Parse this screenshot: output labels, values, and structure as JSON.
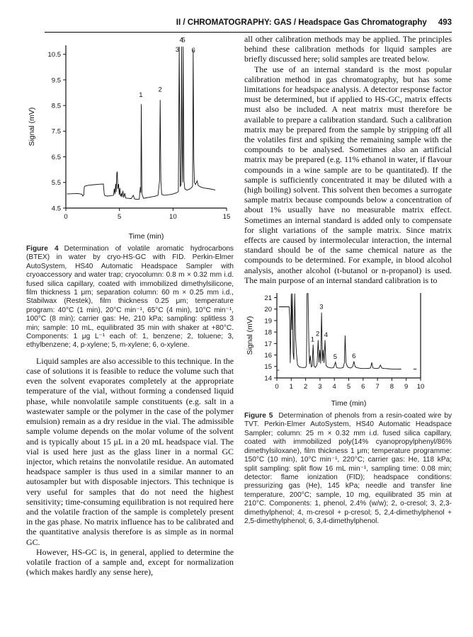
{
  "header": {
    "title": "II / CHROMATOGRAPHY: GAS / Headspace Gas Chromatography",
    "page_number": "493"
  },
  "left_column": {
    "figure4": {
      "label": "Figure 4",
      "text": "Determination of volatile aromatic hydrocarbons (BTEX) in water by cryo-HS-GC with FID. Perkin-Elmer AutoSystem, HS40 Automatic Headspace Sampler with cryoaccessory and water trap; cryocolumn: 0.8 m × 0.32 mm i.d. fused silica capillary, coated with immobilized dimethylsilicone, film thickness 1 μm; separation column: 60 m × 0.25 mm i.d., Stabilwax (Restek), film thickness 0.25 μm; temperature program: 40°C (1 min), 20°C min⁻¹, 65°C (4 min), 10°C min⁻¹, 100°C (8 min); carrier gas: He, 210 kPa; sampling: splitless 3 min; sample: 10 mL, equilibrated 35 min with shaker at +80°C. Components: 1 μg L⁻¹ each of: 1, benzene; 2, toluene; 3, ethylbenzene; 4, p-xylene; 5, m-xylene; 6, o-xylene."
    },
    "paragraphs": [
      "Liquid samples are also accessible to this technique. In the case of solutions it is feasible to reduce the volume such that even the solvent evaporates completely at the appropriate temperature of the vial, without forming a condensed liquid phase, while nonvolatile sample constituents (e.g. salt in a wastewater sample or the polymer in the case of the polymer emulsion) remain as a dry residue in the vial. The admissible sample volume depends on the molar volume of the solvent and is typically about 15 μL in a 20 mL headspace vial. The vial is used here just as the glass liner in a normal GC injector, which retains the nonvolatile residue. An automated headspace sampler is thus used in a similar manner to an autosampler but with disposable injectors. This technique is very useful for samples that do not need the highest sensitivity; time-consuming equilibration is not required here and the volatile fraction of the sample is completely present in the gas phase. No matrix influence has to be calibrated and the quantitative analysis therefore is as simple as in normal GC.",
      "However, HS-GC is, in general, applied to determine the volatile fraction of a sample and, except for normalization (which makes hardly any sense here),"
    ]
  },
  "right_column": {
    "paragraphs": [
      "all other calibration methods may be applied. The principles behind these calibration methods for liquid samples are briefly discussed here; solid samples are treated below.",
      "The use of an internal standard is the most popular calibration method in gas chromatography, but has some limitations for headspace analysis. A detector response factor must be determined, but if applied to HS-GC, matrix effects must also be included. A neat matrix must therefore be available to prepare a calibration standard. Such a calibration matrix may be prepared from the sample by stripping off all the volatiles first and spiking the remaining sample with the compounds to be analysed. Sometimes also an artificial matrix may be prepared (e.g. 11% ethanol in water, if flavour compounds in a wine sample are to be quantitated). If the sample is sufficiently concentrated it may be diluted with a (high boiling) solvent. This solvent then becomes a surrogate sample matrix because compounds below a concentration of about 1% usually have no measurable matrix effect. Sometimes an internal standard is added only to compensate for slight variations of the sample matrix. Since matrix effects are caused by intermolecular interaction, the internal standard should be of the same chemical nature as the compounds to be determined. For example, in blood alcohol analysis, another alcohol (t-butanol or n-propanol) is used. The main purpose of an internal standard calibration is to"
    ],
    "figure5": {
      "label": "Figure 5",
      "text": "Determination of phenols from a resin-coated wire by TVT. Perkin-Elmer AutoSystem, HS40 Automatic Headspace Sampler; column: 25 m × 0.32 mm i.d. fused silica capillary, coated with immobilized poly(14% cyanopropylphenyl/86% dimethylsiloxane), film thickness 1 μm; temperature programme: 150°C (10 min), 10°C min⁻¹, 220°C; carrier gas: He, 118 kPa; split sampling: split flow 16 mL min⁻¹, sampling time: 0.08 min; detector: flame ionization (FID); headspace conditions: pressurizing gas (He), 145 kPa; needle and transfer line temperature, 200°C; sample, 10 mg, equilibrated 35 min at 210°C. Components: 1, phenol, 2.4% (w/w); 2, o-cresol; 3, 2,3-dimethylphenol; 4, m-cresol + p-cresol; 5, 2,4-dimethylphenol + 2,5-dimethylphenol; 6, 3,4-dimethylphenol."
    }
  },
  "chart_data": [
    {
      "id": "fig4",
      "type": "line",
      "title": "",
      "xlabel": "Time (min)",
      "ylabel": "Signal (mV)",
      "xlim": [
        0,
        15
      ],
      "ylim": [
        4.5,
        10.85
      ],
      "xticks": [
        0,
        5,
        10,
        15
      ],
      "yticks": [
        4.5,
        5.5,
        6.5,
        7.5,
        8.5,
        9.5,
        10.5
      ],
      "axes": [
        "left",
        "bottom"
      ],
      "grid": false,
      "legend": "none",
      "peak_labels": [
        {
          "label": "1",
          "x": 7.0,
          "y": 8.78
        },
        {
          "label": "2",
          "x": 8.8,
          "y": 8.98
        },
        {
          "label": "3",
          "x": 10.4,
          "y": 10.55
        },
        {
          "label": "4",
          "x": 10.78,
          "y": 10.92
        },
        {
          "label": "5",
          "x": 10.97,
          "y": 10.92
        },
        {
          "label": "6",
          "x": 11.9,
          "y": 10.52
        }
      ],
      "peaks_summary": [
        {
          "component": "1 benzene",
          "time_min": 7.0,
          "signal_mV": 8.55
        },
        {
          "component": "2 toluene",
          "time_min": 8.8,
          "signal_mV": 8.72
        },
        {
          "component": "3 ethylbenzene",
          "time_min": 10.6,
          "signal_mV": 10.8
        },
        {
          "component": "4 p-xylene",
          "time_min": 10.8,
          "signal_mV": 10.8
        },
        {
          "component": "5 m-xylene",
          "time_min": 10.95,
          "signal_mV": 10.8
        },
        {
          "component": "6 o-xylene",
          "time_min": 11.9,
          "signal_mV": 10.65
        }
      ],
      "trace": [
        [
          0.1,
          5.05
        ],
        [
          0.6,
          5.06
        ],
        [
          1.1,
          5.07
        ],
        [
          1.5,
          5.04
        ],
        [
          1.58,
          4.97
        ],
        [
          1.68,
          5.02
        ],
        [
          1.72,
          5.32
        ],
        [
          1.8,
          5.36
        ],
        [
          2.1,
          5.39
        ],
        [
          2.6,
          5.41
        ],
        [
          3.1,
          5.43
        ],
        [
          3.5,
          5.44
        ],
        [
          3.58,
          5.05
        ],
        [
          3.65,
          4.98
        ],
        [
          3.9,
          4.97
        ],
        [
          4.2,
          4.98
        ],
        [
          4.45,
          5.0
        ],
        [
          4.52,
          5.26
        ],
        [
          4.58,
          5.04
        ],
        [
          4.65,
          5.45
        ],
        [
          4.7,
          5.12
        ],
        [
          4.76,
          5.88
        ],
        [
          4.8,
          5.92
        ],
        [
          4.85,
          5.25
        ],
        [
          4.92,
          5.44
        ],
        [
          4.98,
          5.02
        ],
        [
          5.04,
          5.28
        ],
        [
          5.1,
          4.96
        ],
        [
          5.18,
          5.06
        ],
        [
          5.24,
          4.93
        ],
        [
          5.32,
          5.17
        ],
        [
          5.4,
          4.91
        ],
        [
          5.5,
          5.08
        ],
        [
          5.6,
          4.89
        ],
        [
          5.8,
          4.88
        ],
        [
          6.1,
          4.87
        ],
        [
          6.3,
          5.0
        ],
        [
          6.4,
          4.86
        ],
        [
          6.6,
          4.84
        ],
        [
          6.85,
          4.85
        ],
        [
          6.95,
          5.32
        ],
        [
          7.0,
          5.1
        ],
        [
          7.04,
          8.55
        ],
        [
          7.1,
          5.05
        ],
        [
          7.25,
          4.88
        ],
        [
          7.5,
          4.9
        ],
        [
          7.9,
          4.93
        ],
        [
          8.3,
          4.96
        ],
        [
          8.6,
          5.0
        ],
        [
          8.74,
          5.55
        ],
        [
          8.8,
          8.72
        ],
        [
          8.87,
          5.55
        ],
        [
          8.95,
          5.03
        ],
        [
          9.2,
          5.0
        ],
        [
          9.6,
          5.02
        ],
        [
          10.0,
          5.05
        ],
        [
          10.3,
          5.09
        ],
        [
          10.5,
          5.14
        ],
        [
          10.58,
          10.8
        ],
        [
          10.64,
          7.0
        ],
        [
          10.68,
          5.35
        ],
        [
          10.75,
          5.4
        ],
        [
          10.8,
          10.8
        ],
        [
          10.86,
          6.6
        ],
        [
          10.9,
          5.5
        ],
        [
          10.95,
          10.8
        ],
        [
          11.02,
          5.6
        ],
        [
          11.1,
          5.25
        ],
        [
          11.3,
          5.2
        ],
        [
          11.55,
          5.24
        ],
        [
          11.75,
          5.3
        ],
        [
          11.83,
          5.36
        ],
        [
          11.88,
          10.65
        ],
        [
          11.94,
          6.4
        ],
        [
          12.0,
          5.5
        ],
        [
          12.1,
          5.42
        ],
        [
          12.25,
          5.56
        ],
        [
          12.35,
          5.38
        ],
        [
          12.6,
          5.32
        ],
        [
          12.9,
          5.28
        ],
        [
          13.3,
          5.26
        ],
        [
          13.8,
          5.22
        ],
        [
          13.95,
          5.2
        ]
      ]
    },
    {
      "id": "fig5",
      "type": "line",
      "title": "",
      "xlabel": "Time (min)",
      "ylabel": "Signal (mV)",
      "xlim": [
        0,
        10
      ],
      "ylim": [
        14,
        21.4
      ],
      "xticks": [
        0,
        1,
        2,
        3,
        4,
        5,
        6,
        7,
        8,
        9,
        10
      ],
      "yticks": [
        14,
        15,
        16,
        17,
        18,
        19,
        20,
        21
      ],
      "axes": [
        "left",
        "bottom",
        "right"
      ],
      "grid": false,
      "legend": "none",
      "peak_labels": [
        {
          "label": "1",
          "x": 2.48,
          "y": 17.05
        },
        {
          "label": "2",
          "x": 2.84,
          "y": 17.55
        },
        {
          "label": "3",
          "x": 3.1,
          "y": 19.9
        },
        {
          "label": "4",
          "x": 3.42,
          "y": 17.45
        },
        {
          "label": "5",
          "x": 4.06,
          "y": 15.55
        },
        {
          "label": "6",
          "x": 5.36,
          "y": 15.6
        }
      ],
      "peaks_summary": [
        {
          "component": "1 phenol",
          "time_min": 2.52,
          "signal_mV": 16.9
        },
        {
          "component": "2 o-cresol",
          "time_min": 2.87,
          "signal_mV": 17.3
        },
        {
          "component": "3 2,3-dimethylphenol",
          "time_min": 3.11,
          "signal_mV": 19.7
        },
        {
          "component": "4 m-cresol + p-cresol",
          "time_min": 3.35,
          "signal_mV": 17.3
        },
        {
          "component": "5 2,4- + 2,5-dimethylphenol",
          "time_min": 4.08,
          "signal_mV": 15.38
        },
        {
          "component": "6 3,4-dimethylphenol",
          "time_min": 5.36,
          "signal_mV": 15.45
        }
      ],
      "trace": [
        [
          0.15,
          20.2
        ],
        [
          0.85,
          20.2
        ],
        [
          0.9,
          19.0
        ],
        [
          0.93,
          15.3
        ],
        [
          0.97,
          17.5
        ],
        [
          1.0,
          21.35
        ],
        [
          1.04,
          18.2
        ],
        [
          1.08,
          21.35
        ],
        [
          1.13,
          16.2
        ],
        [
          1.18,
          15.6
        ],
        [
          1.24,
          21.35
        ],
        [
          1.3,
          17.6
        ],
        [
          1.36,
          16.2
        ],
        [
          1.44,
          15.15
        ],
        [
          1.55,
          14.97
        ],
        [
          1.7,
          14.92
        ],
        [
          1.85,
          14.9
        ],
        [
          2.0,
          14.92
        ],
        [
          2.06,
          15.1
        ],
        [
          2.1,
          21.35
        ],
        [
          2.17,
          21.35
        ],
        [
          2.22,
          17.2
        ],
        [
          2.27,
          15.2
        ],
        [
          2.33,
          15.95
        ],
        [
          2.39,
          14.97
        ],
        [
          2.46,
          15.05
        ],
        [
          2.52,
          16.9
        ],
        [
          2.58,
          15.05
        ],
        [
          2.68,
          14.92
        ],
        [
          2.8,
          15.15
        ],
        [
          2.87,
          17.3
        ],
        [
          2.93,
          15.35
        ],
        [
          2.99,
          16.45
        ],
        [
          3.05,
          15.25
        ],
        [
          3.11,
          19.7
        ],
        [
          3.17,
          15.45
        ],
        [
          3.22,
          16.45
        ],
        [
          3.28,
          15.3
        ],
        [
          3.35,
          17.3
        ],
        [
          3.42,
          15.1
        ],
        [
          3.52,
          14.95
        ],
        [
          3.65,
          14.9
        ],
        [
          3.8,
          14.87
        ],
        [
          3.95,
          14.9
        ],
        [
          4.08,
          15.38
        ],
        [
          4.16,
          14.9
        ],
        [
          4.3,
          14.86
        ],
        [
          4.5,
          14.87
        ],
        [
          4.62,
          14.92
        ],
        [
          4.7,
          15.35
        ],
        [
          4.75,
          17.7
        ],
        [
          4.81,
          15.35
        ],
        [
          4.9,
          15.0
        ],
        [
          5.0,
          14.9
        ],
        [
          5.15,
          14.87
        ],
        [
          5.28,
          15.0
        ],
        [
          5.36,
          15.45
        ],
        [
          5.44,
          15.0
        ],
        [
          5.55,
          14.9
        ],
        [
          5.72,
          14.86
        ],
        [
          5.9,
          14.82
        ],
        [
          6.1,
          14.82
        ],
        [
          6.35,
          14.83
        ],
        [
          6.52,
          14.87
        ],
        [
          6.6,
          15.35
        ],
        [
          6.68,
          14.87
        ],
        [
          6.9,
          14.82
        ],
        [
          7.1,
          14.86
        ],
        [
          7.2,
          15.12
        ],
        [
          7.3,
          14.86
        ],
        [
          7.5,
          14.82
        ],
        [
          7.75,
          14.8
        ],
        [
          8.0,
          14.78
        ],
        [
          8.3,
          14.78
        ],
        [
          8.65,
          14.77
        ]
      ],
      "extra_segments": [
        [
          [
            0.04,
            14.68
          ],
          [
            0.16,
            14.68
          ]
        ],
        [
          [
            9.5,
            14.77
          ],
          [
            9.72,
            14.77
          ]
        ]
      ]
    }
  ]
}
